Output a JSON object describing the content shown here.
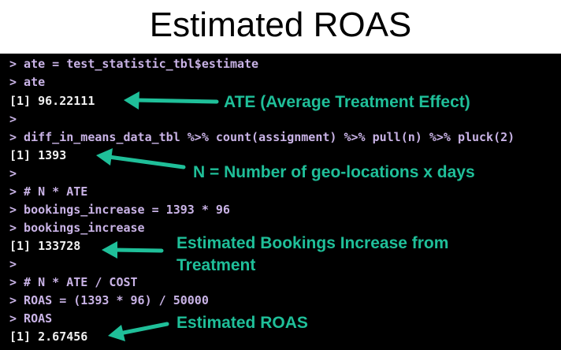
{
  "title": "Estimated ROAS",
  "accent_color": "#1fbf99",
  "console": {
    "lines": [
      {
        "kind": "cmd",
        "text": "> ate = test_statistic_tbl$estimate"
      },
      {
        "kind": "cmd",
        "text": "> ate"
      },
      {
        "kind": "out",
        "text": "[1] 96.22111"
      },
      {
        "kind": "cmd",
        "text": ">"
      },
      {
        "kind": "cmd",
        "text": "> diff_in_means_data_tbl %>% count(assignment) %>% pull(n) %>% pluck(2)"
      },
      {
        "kind": "out",
        "text": "[1] 1393"
      },
      {
        "kind": "cmd",
        "text": ">"
      },
      {
        "kind": "cmd",
        "text": "> # N * ATE"
      },
      {
        "kind": "cmd",
        "text": "> bookings_increase = 1393 * 96"
      },
      {
        "kind": "cmd",
        "text": "> bookings_increase"
      },
      {
        "kind": "out",
        "text": "[1] 133728"
      },
      {
        "kind": "cmd",
        "text": ">"
      },
      {
        "kind": "cmd",
        "text": "> # N * ATE / COST"
      },
      {
        "kind": "cmd",
        "text": "> ROAS = (1393 * 96) / 50000"
      },
      {
        "kind": "cmd",
        "text": "> ROAS"
      },
      {
        "kind": "out",
        "text": "[1] 2.67456"
      }
    ]
  },
  "annotations": {
    "ate": "ATE (Average Treatment Effect)",
    "n": "N = Number of geo-locations x days",
    "bookings_line1": "Estimated Bookings Increase from",
    "bookings_line2": "Treatment",
    "roas": "Estimated ROAS"
  }
}
